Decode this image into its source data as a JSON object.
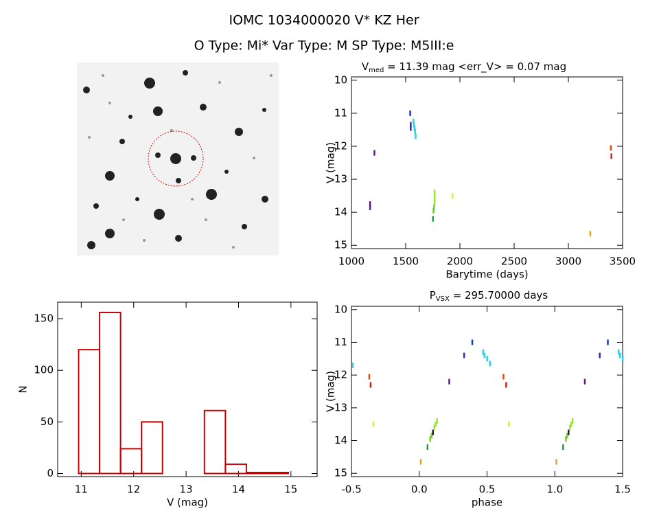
{
  "header": {
    "title": "IOMC 1034000020    V* KZ Her",
    "subtitle": "O Type: Mi*  Var Type: M  SP Type: M5III:e"
  },
  "chart_data": [
    {
      "type": "scatter",
      "title_parts": [
        "V",
        "med",
        " = 11.39 mag <err_V> = 0.07 mag"
      ],
      "x_label": "Barytime (days)",
      "y_label": "V (mag)",
      "xlim": [
        1000,
        3500
      ],
      "xticks": [
        1000,
        1500,
        2000,
        2500,
        3000,
        3500
      ],
      "ylim": [
        9.9,
        15.1
      ],
      "yticks": [
        10,
        11,
        12,
        13,
        14,
        15
      ],
      "y_inverted": true,
      "x": [
        1170,
        1170,
        1210,
        1540,
        1545,
        1545,
        1570,
        1575,
        1580,
        1585,
        1590,
        1765,
        1765,
        1765,
        1765,
        1760,
        1755,
        1750,
        1930,
        3200,
        3390,
        3395
      ],
      "values": [
        13.75,
        13.85,
        12.2,
        11.0,
        11.35,
        11.45,
        11.25,
        11.35,
        11.45,
        11.55,
        11.7,
        13.4,
        13.5,
        13.6,
        13.7,
        13.85,
        13.95,
        14.2,
        13.5,
        14.65,
        12.05,
        12.3
      ],
      "colors": [
        "#5a1a8c",
        "#5a1a8c",
        "#5a1a8c",
        "#1838c8",
        "#3a2ab0",
        "#3a2ab0",
        "#30d0e8",
        "#30d0e8",
        "#30d0e8",
        "#30d0e8",
        "#30d0e8",
        "#98e830",
        "#98e830",
        "#98e830",
        "#98e830",
        "#70d020",
        "#70d020",
        "#20a040",
        "#d8e850",
        "#f0a020",
        "#e05010",
        "#d02010"
      ]
    },
    {
      "type": "scatter",
      "title_parts": [
        "P",
        "VSX",
        " = 295.70000 days"
      ],
      "x_label": "phase",
      "y_label": "V (mag)",
      "xlim": [
        -0.5,
        1.5
      ],
      "xticks": [
        -0.5,
        {
          "value": 0,
          "label": "0.0"
        },
        0.5,
        {
          "value": 1,
          "label": "1.0"
        },
        1.5
      ],
      "ylim": [
        9.9,
        15.1
      ],
      "yticks": [
        10,
        11,
        12,
        13,
        14,
        15
      ],
      "y_inverted": true,
      "x": [
        -0.49,
        -0.37,
        -0.36,
        -0.34,
        0.01,
        0.06,
        0.08,
        0.09,
        0.1,
        0.11,
        0.12,
        0.13,
        0.22,
        0.33,
        0.39,
        0.47,
        0.48,
        0.5,
        0.52,
        0.62,
        0.64,
        0.66,
        1.01,
        1.06,
        1.08,
        1.09,
        1.1,
        1.11,
        1.12,
        1.13,
        1.22,
        1.33,
        1.39,
        1.47,
        1.48,
        1.5
      ],
      "values": [
        11.7,
        12.05,
        12.3,
        13.5,
        14.65,
        14.2,
        13.95,
        13.85,
        13.75,
        13.6,
        13.5,
        13.4,
        12.2,
        11.4,
        11.0,
        11.3,
        11.4,
        11.5,
        11.65,
        12.05,
        12.3,
        13.5,
        14.65,
        14.2,
        13.95,
        13.85,
        13.75,
        13.6,
        13.5,
        13.4,
        12.2,
        11.4,
        11.0,
        11.3,
        11.4,
        11.5
      ],
      "colors": [
        "#30d0e8",
        "#e05010",
        "#d02010",
        "#d8e850",
        "#f0a020",
        "#20a040",
        "#70d020",
        "#70d020",
        "#202020",
        "#98e830",
        "#98e830",
        "#98e830",
        "#5a1a8c",
        "#3a2ab0",
        "#1838c8",
        "#30d0e8",
        "#30d0e8",
        "#30d0e8",
        "#30d0e8",
        "#e05010",
        "#d02010",
        "#d8e850",
        "#f0a020",
        "#20a040",
        "#70d020",
        "#70d020",
        "#202020",
        "#98e830",
        "#98e830",
        "#98e830",
        "#5a1a8c",
        "#3a2ab0",
        "#1838c8",
        "#30d0e8",
        "#30d0e8",
        "#30d0e8"
      ]
    },
    {
      "type": "histogram",
      "x_label": "V (mag)",
      "y_label": "N",
      "color": "#cc0000",
      "xlim": [
        10.55,
        15.5
      ],
      "xticks": [
        11,
        12,
        13,
        14,
        15
      ],
      "ylim": [
        -3,
        166
      ],
      "yticks": [
        0,
        50,
        100,
        150
      ],
      "bins": [
        10.95,
        11.35,
        11.75,
        12.15,
        12.55,
        12.95,
        13.35,
        13.75,
        14.15,
        14.55,
        14.95
      ],
      "counts": [
        120,
        156,
        24,
        50,
        0,
        0,
        61,
        9,
        1,
        1
      ]
    }
  ]
}
